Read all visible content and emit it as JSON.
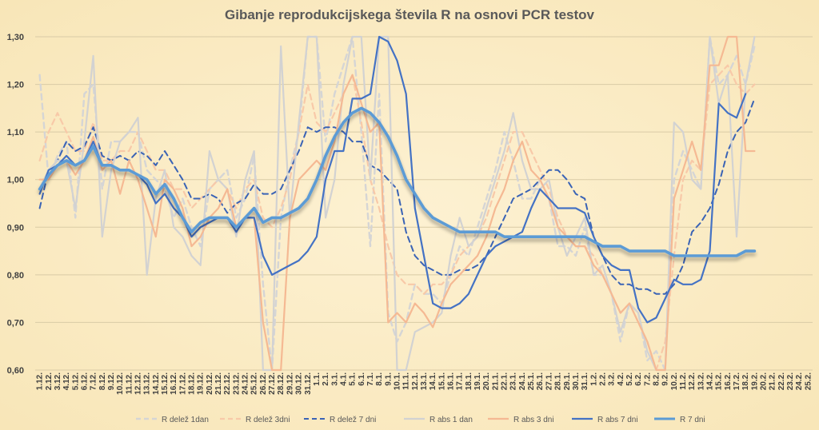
{
  "chart_data": {
    "type": "line",
    "title": "Gibanje reprodukcijskega števila R na osnovi PCR testov",
    "xlabel": "",
    "ylabel": "",
    "ylim": [
      0.6,
      1.3
    ],
    "yticks": [
      "0,60",
      "0,70",
      "0,80",
      "0,90",
      "1,00",
      "1,10",
      "1,20",
      "1,30"
    ],
    "grid": true,
    "legend": "bottom",
    "categories": [
      "1.12.",
      "2.12.",
      "3.12.",
      "4.12.",
      "5.12.",
      "6.12.",
      "7.12.",
      "8.12.",
      "9.12.",
      "10.12.",
      "11.12.",
      "12.12.",
      "13.12.",
      "14.12.",
      "15.12.",
      "16.12.",
      "17.12.",
      "18.12.",
      "19.12.",
      "20.12.",
      "21.12.",
      "22.12.",
      "23.12.",
      "24.12.",
      "25.12.",
      "26.12.",
      "27.12.",
      "28.12.",
      "29.12.",
      "30.12.",
      "31.12.",
      "1.1.",
      "2.1.",
      "3.1.",
      "4.1.",
      "5.1.",
      "6.1.",
      "7.1.",
      "8.1.",
      "9.1.",
      "10.1.",
      "11.1.",
      "12.1.",
      "13.1.",
      "14.1.",
      "15.1.",
      "16.1.",
      "17.1.",
      "18.1.",
      "19.1.",
      "20.1.",
      "21.1.",
      "22.1.",
      "23.1.",
      "24.1.",
      "25.1.",
      "26.1.",
      "27.1.",
      "28.1.",
      "29.1.",
      "30.1.",
      "31.1.",
      "1.2.",
      "2.2.",
      "3.2.",
      "4.2.",
      "5.2.",
      "6.2.",
      "7.2.",
      "8.2.",
      "9.2.",
      "10.2.",
      "11.2.",
      "12.2.",
      "13.2.",
      "14.2.",
      "15.2.",
      "16.2.",
      "17.2.",
      "18.2.",
      "19.2.",
      "20.2.",
      "21.2.",
      "22.2.",
      "23.2.",
      "24.2.",
      "25.2."
    ],
    "series": [
      {
        "name": "R delež 1dan",
        "color": "#d5d5d5",
        "style": "dashed",
        "width": 2.4,
        "values": [
          1.22,
          1.0,
          1.05,
          1.08,
          0.92,
          1.18,
          1.2,
          0.98,
          1.08,
          1.08,
          1.1,
          1.1,
          1.02,
          1.0,
          0.98,
          0.92,
          0.96,
          0.9,
          0.86,
          0.98,
          1.0,
          1.02,
          0.92,
          0.96,
          1.05,
          0.78,
          0.6,
          0.92,
          1.02,
          1.1,
          1.32,
          1.4,
          1.08,
          1.18,
          1.24,
          1.32,
          1.1,
          0.86,
          1.18,
          0.72,
          0.66,
          0.7,
          0.78,
          0.76,
          0.76,
          0.74,
          0.8,
          0.86,
          0.84,
          0.9,
          0.96,
          1.02,
          1.1,
          1.04,
          0.96,
          0.96,
          1.0,
          0.96,
          0.86,
          0.86,
          0.84,
          0.9,
          0.8,
          0.8,
          0.76,
          0.66,
          0.74,
          0.72,
          0.62,
          0.64,
          0.6,
          1.0,
          1.06,
          1.02,
          0.98,
          1.3,
          1.2,
          1.22,
          1.26,
          1.2,
          1.28,
          null,
          null,
          null,
          null,
          null,
          null
        ]
      },
      {
        "name": "R delež 3dni",
        "color": "#f8c9a8",
        "style": "dashed",
        "width": 2.2,
        "values": [
          1.04,
          1.1,
          1.14,
          1.1,
          1.06,
          1.06,
          1.12,
          1.04,
          1.04,
          1.06,
          1.06,
          1.1,
          1.06,
          1.02,
          1.02,
          0.98,
          0.98,
          0.94,
          0.96,
          0.98,
          1.0,
          0.98,
          0.94,
          0.98,
          1.0,
          0.92,
          0.9,
          0.94,
          1.0,
          1.1,
          1.2,
          1.12,
          1.1,
          1.14,
          1.18,
          1.22,
          1.12,
          1.0,
          0.94,
          0.86,
          0.8,
          0.78,
          0.78,
          0.76,
          0.78,
          0.78,
          0.8,
          0.84,
          0.86,
          0.88,
          0.92,
          0.98,
          1.04,
          1.1,
          1.1,
          1.06,
          1.02,
          0.98,
          0.92,
          0.88,
          0.86,
          0.86,
          0.84,
          0.8,
          0.76,
          0.72,
          0.74,
          0.7,
          0.66,
          0.6,
          0.66,
          0.84,
          1.0,
          1.04,
          1.02,
          1.2,
          1.22,
          1.24,
          1.2,
          1.18,
          1.2,
          null,
          null,
          null,
          null,
          null,
          null
        ]
      },
      {
        "name": "R delež 7 dni",
        "color": "#3a63b5",
        "style": "dashed",
        "width": 2.0,
        "values": [
          0.94,
          1.02,
          1.04,
          1.08,
          1.06,
          1.07,
          1.11,
          1.05,
          1.04,
          1.05,
          1.04,
          1.06,
          1.05,
          1.03,
          1.06,
          1.03,
          1.0,
          0.96,
          0.96,
          0.97,
          0.96,
          0.93,
          0.95,
          0.96,
          0.99,
          0.97,
          0.97,
          0.98,
          1.02,
          1.06,
          1.11,
          1.1,
          1.11,
          1.11,
          1.1,
          1.08,
          1.08,
          1.03,
          1.02,
          1.0,
          0.98,
          0.89,
          0.84,
          0.82,
          0.81,
          0.8,
          0.8,
          0.81,
          0.81,
          0.82,
          0.84,
          0.88,
          0.92,
          0.96,
          0.97,
          0.98,
          1.0,
          1.02,
          1.02,
          1.0,
          0.97,
          0.96,
          0.88,
          0.84,
          0.8,
          0.78,
          0.78,
          0.77,
          0.77,
          0.76,
          0.76,
          0.78,
          0.82,
          0.89,
          0.91,
          0.94,
          0.99,
          1.06,
          1.1,
          1.12,
          1.17,
          null,
          null,
          null,
          null,
          null,
          null
        ]
      },
      {
        "name": "R abs 1 dan",
        "color": "#d2d2d2",
        "style": "solid",
        "width": 2.2,
        "values": [
          0.98,
          1.02,
          1.04,
          1.04,
          0.94,
          1.08,
          1.26,
          0.88,
          1.02,
          1.08,
          1.1,
          1.13,
          0.8,
          0.96,
          1.02,
          0.9,
          0.88,
          0.84,
          0.82,
          1.06,
          1.0,
          0.98,
          0.88,
          1.0,
          1.06,
          0.6,
          0.6,
          1.28,
          0.92,
          1.12,
          1.34,
          1.4,
          0.92,
          1.0,
          1.2,
          1.4,
          1.3,
          1.0,
          1.4,
          1.5,
          0.6,
          0.6,
          0.68,
          0.69,
          0.7,
          0.72,
          0.84,
          0.92,
          0.86,
          0.88,
          0.94,
          1.0,
          1.06,
          1.14,
          1.04,
          0.98,
          0.98,
          1.0,
          0.9,
          0.84,
          0.88,
          0.92,
          0.8,
          0.82,
          0.76,
          0.68,
          0.74,
          0.72,
          0.64,
          0.6,
          0.6,
          1.12,
          1.1,
          1.0,
          0.98,
          1.3,
          1.16,
          1.22,
          0.88,
          1.2,
          1.3,
          null,
          null,
          null,
          null,
          null,
          null
        ]
      },
      {
        "name": "R abs 3 dni",
        "color": "#f5b993",
        "style": "solid",
        "width": 2.2,
        "values": [
          1.0,
          1.0,
          1.03,
          1.04,
          1.01,
          1.04,
          1.09,
          1.02,
          1.04,
          0.97,
          1.04,
          1.0,
          0.94,
          0.88,
          1.0,
          0.98,
          0.94,
          0.86,
          0.88,
          0.92,
          0.94,
          0.98,
          0.9,
          0.92,
          0.92,
          0.7,
          0.6,
          0.6,
          0.92,
          1.0,
          1.02,
          1.04,
          1.02,
          1.08,
          1.18,
          1.22,
          1.16,
          1.1,
          1.12,
          0.7,
          0.72,
          0.7,
          0.74,
          0.72,
          0.69,
          0.74,
          0.78,
          0.8,
          0.82,
          0.84,
          0.88,
          0.94,
          0.98,
          1.04,
          1.08,
          1.02,
          1.0,
          0.96,
          0.9,
          0.88,
          0.86,
          0.86,
          0.82,
          0.8,
          0.76,
          0.72,
          0.74,
          0.7,
          0.66,
          0.6,
          0.6,
          0.96,
          1.02,
          1.08,
          1.02,
          1.24,
          1.24,
          1.36,
          1.5,
          1.06,
          1.06,
          null,
          null,
          null,
          null,
          null,
          null
        ]
      },
      {
        "name": "R abs 7 dni",
        "color": "#4472c4",
        "style": "solid",
        "width": 2.2,
        "values": [
          0.97,
          1.02,
          1.03,
          1.05,
          1.03,
          1.04,
          1.08,
          1.03,
          1.03,
          1.02,
          1.02,
          1.01,
          0.99,
          0.95,
          0.97,
          0.94,
          0.92,
          0.88,
          0.9,
          0.91,
          0.92,
          0.92,
          0.89,
          0.92,
          0.92,
          0.84,
          0.8,
          0.81,
          0.82,
          0.83,
          0.85,
          0.88,
          1.0,
          1.06,
          1.06,
          1.17,
          1.17,
          1.18,
          1.3,
          1.29,
          1.25,
          1.18,
          0.94,
          0.84,
          0.74,
          0.73,
          0.73,
          0.74,
          0.76,
          0.8,
          0.84,
          0.86,
          0.87,
          0.88,
          0.89,
          0.94,
          0.98,
          0.96,
          0.94,
          0.94,
          0.94,
          0.93,
          0.88,
          0.84,
          0.82,
          0.81,
          0.81,
          0.73,
          0.7,
          0.71,
          0.75,
          0.79,
          0.78,
          0.78,
          0.79,
          0.85,
          1.16,
          1.14,
          1.13,
          1.18,
          null,
          null,
          null,
          null,
          null,
          null,
          null
        ]
      },
      {
        "name": "R 7 dni",
        "color": "#5b9bd5",
        "style": "solid",
        "width": 3.6,
        "values": [
          0.98,
          1.01,
          1.03,
          1.04,
          1.03,
          1.04,
          1.07,
          1.03,
          1.03,
          1.02,
          1.02,
          1.01,
          1.0,
          0.97,
          0.99,
          0.96,
          0.92,
          0.89,
          0.91,
          0.92,
          0.92,
          0.92,
          0.9,
          0.92,
          0.94,
          0.91,
          0.92,
          0.92,
          0.93,
          0.94,
          0.96,
          1.0,
          1.05,
          1.09,
          1.12,
          1.14,
          1.15,
          1.14,
          1.12,
          1.09,
          1.05,
          1.0,
          0.97,
          0.94,
          0.92,
          0.91,
          0.9,
          0.89,
          0.89,
          0.89,
          0.89,
          0.89,
          0.88,
          0.88,
          0.88,
          0.88,
          0.88,
          0.88,
          0.88,
          0.88,
          0.88,
          0.88,
          0.87,
          0.86,
          0.86,
          0.86,
          0.85,
          0.85,
          0.85,
          0.85,
          0.85,
          0.84,
          0.84,
          0.84,
          0.84,
          0.84,
          0.84,
          0.84,
          0.84,
          0.85,
          0.85,
          null,
          null,
          null,
          null,
          null,
          null
        ]
      }
    ]
  }
}
